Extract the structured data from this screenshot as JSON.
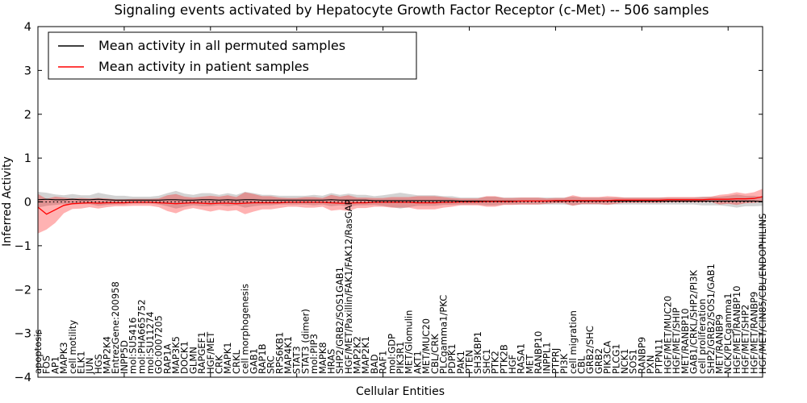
{
  "chart_data": {
    "type": "line",
    "title": "Signaling events activated by Hepatocyte Growth Factor Receptor (c-Met) -- 506 samples",
    "xlabel": "Cellular Entities",
    "ylabel": "Inferred Activity",
    "ylim": [
      -4,
      4
    ],
    "yticks": [
      4,
      3,
      2,
      1,
      0,
      -1,
      -2,
      -3,
      -4
    ],
    "grid": false,
    "legend_position": "upper left",
    "zero_line": {
      "style": "dotted",
      "color": "#000000",
      "y": 0
    },
    "categories": [
      "apoptosis",
      "FOS",
      "AP1",
      "MAPK3",
      "cell motility",
      "ELK1",
      "JUN",
      "HGS",
      "MAP2K4",
      "EntrezGene:200958",
      "INPP5D",
      "mol:SU5416",
      "mol:PHA665752",
      "mol:SU11274",
      "GO:0007205",
      "RAP1A",
      "MAP3K5",
      "DOCK1",
      "GLMN",
      "RAPGEF1",
      "HGF/MET",
      "CRK",
      "MAPK1",
      "CRKL",
      "cell morphogenesis",
      "GAB1",
      "RAP1B",
      "SRC",
      "RPS6KB1",
      "MAP4K1",
      "STAT3",
      "STAT3 (dimer)",
      "mol:PIP3",
      "MAPK8",
      "HRAS",
      "SHP2/GRB2/SOS1GAB1",
      "HGF/MET/Paxillin/FAK1/FAK12/RasGAP",
      "MAP2K2",
      "MAP2K1",
      "BAD",
      "RAF1",
      "mol:GDP",
      "PIK3R1",
      "MET/Glomulin",
      "AKT1",
      "MET/MUC20",
      "CBL/CRK",
      "PLCgamma1/PKC",
      "PDPK1",
      "PAK1",
      "PTEN",
      "SH3KBP1",
      "SHC1",
      "PTK2",
      "PTK2B",
      "HGF",
      "RASA1",
      "MET",
      "RANBP10",
      "INPPL1",
      "PTPRJ",
      "PI3K",
      "cell migration",
      "CBL",
      "GRB2/SHC",
      "GRB2",
      "PIK3CA",
      "PLCG1",
      "NCK1",
      "SOS1",
      "RANBP9",
      "PXN",
      "PTPN11",
      "HGF/MET/MUC20",
      "HGF/MET/SHIP",
      "MET/RANBP10",
      "GAB1/CRKL/SHP2/PI3K",
      "cell proliferation",
      "SHP2/GRB2/SOS1/GAB1",
      "MET/RANBP9",
      "NCK/PLCgamma1",
      "HGF/MET/RANBP10",
      "HGF/MET/SHP2",
      "HGF/MET/RANBP9",
      "HGF/MET/CIN85/CBL/ENDOPHILINS"
    ],
    "series": [
      {
        "name": "Mean activity in all permuted samples",
        "color": "#000000",
        "values": [
          0.05,
          0.06,
          0.05,
          0.05,
          0.06,
          0.05,
          0.05,
          0.06,
          0.05,
          0.04,
          0.04,
          0.04,
          0.04,
          0.04,
          0.04,
          0.05,
          0.05,
          0.04,
          0.04,
          0.05,
          0.05,
          0.04,
          0.05,
          0.04,
          0.05,
          0.05,
          0.04,
          0.04,
          0.04,
          0.04,
          0.04,
          0.04,
          0.04,
          0.04,
          0.05,
          0.04,
          0.04,
          0.04,
          0.04,
          0.03,
          0.03,
          0.03,
          0.03,
          0.03,
          0.03,
          0.03,
          0.03,
          0.03,
          0.03,
          0.02,
          0.02,
          0.02,
          0.02,
          0.02,
          0.02,
          0.02,
          0.02,
          0.02,
          0.02,
          0.02,
          0.02,
          0.02,
          0.02,
          0.02,
          0.02,
          0.02,
          0.02,
          0.02,
          0.02,
          0.02,
          0.02,
          0.02,
          0.02,
          0.02,
          0.02,
          0.02,
          0.02,
          0.02,
          0.02,
          0.02,
          0.02,
          0.02,
          0.02,
          0.02,
          0.01
        ]
      },
      {
        "name": "Mean activity in patient samples",
        "color": "#ff0000",
        "values": [
          -0.12,
          -0.28,
          -0.18,
          -0.08,
          -0.04,
          -0.03,
          -0.02,
          -0.03,
          -0.02,
          -0.02,
          -0.02,
          -0.01,
          -0.01,
          -0.01,
          -0.02,
          -0.03,
          -0.04,
          -0.03,
          -0.02,
          -0.03,
          -0.04,
          -0.03,
          -0.03,
          -0.04,
          -0.03,
          -0.02,
          -0.02,
          -0.02,
          -0.02,
          -0.01,
          -0.01,
          -0.01,
          -0.01,
          -0.01,
          -0.02,
          -0.03,
          -0.03,
          -0.02,
          -0.02,
          -0.01,
          -0.01,
          -0.01,
          -0.01,
          -0.01,
          -0.02,
          -0.02,
          -0.02,
          -0.01,
          -0.01,
          0.0,
          0.0,
          0.0,
          0.01,
          0.01,
          0.01,
          0.01,
          0.02,
          0.02,
          0.02,
          0.02,
          0.03,
          0.03,
          0.03,
          0.03,
          0.03,
          0.03,
          0.03,
          0.04,
          0.04,
          0.04,
          0.04,
          0.04,
          0.04,
          0.05,
          0.05,
          0.05,
          0.05,
          0.05,
          0.06,
          0.06,
          0.06,
          0.07,
          0.07,
          0.08,
          0.12
        ]
      }
    ],
    "bands": [
      {
        "name": "permuted samples range",
        "color": "rgba(128,128,128,0.35)",
        "upper": [
          0.23,
          0.21,
          0.17,
          0.15,
          0.18,
          0.15,
          0.15,
          0.21,
          0.17,
          0.14,
          0.14,
          0.12,
          0.12,
          0.12,
          0.14,
          0.2,
          0.25,
          0.19,
          0.16,
          0.2,
          0.2,
          0.16,
          0.2,
          0.16,
          0.23,
          0.2,
          0.16,
          0.16,
          0.14,
          0.14,
          0.14,
          0.14,
          0.16,
          0.14,
          0.2,
          0.16,
          0.19,
          0.16,
          0.16,
          0.13,
          0.15,
          0.18,
          0.21,
          0.18,
          0.15,
          0.15,
          0.15,
          0.13,
          0.13,
          0.1,
          0.1,
          0.1,
          0.12,
          0.12,
          0.1,
          0.1,
          0.1,
          0.1,
          0.1,
          0.1,
          0.1,
          0.1,
          0.12,
          0.1,
          0.1,
          0.1,
          0.1,
          0.1,
          0.1,
          0.1,
          0.1,
          0.1,
          0.1,
          0.1,
          0.1,
          0.1,
          0.1,
          0.12,
          0.12,
          0.12,
          0.14,
          0.17,
          0.14,
          0.14,
          0.11
        ],
        "lower": [
          -0.13,
          -0.09,
          -0.07,
          -0.05,
          -0.06,
          -0.05,
          -0.05,
          -0.09,
          -0.07,
          -0.06,
          -0.06,
          -0.04,
          -0.04,
          -0.04,
          -0.06,
          -0.1,
          -0.15,
          -0.11,
          -0.08,
          -0.1,
          -0.1,
          -0.08,
          -0.1,
          -0.08,
          -0.13,
          -0.1,
          -0.08,
          -0.08,
          -0.06,
          -0.06,
          -0.06,
          -0.06,
          -0.08,
          -0.06,
          -0.1,
          -0.08,
          -0.11,
          -0.08,
          -0.08,
          -0.07,
          -0.09,
          -0.12,
          -0.15,
          -0.12,
          -0.09,
          -0.09,
          -0.09,
          -0.07,
          -0.07,
          -0.06,
          -0.06,
          -0.06,
          -0.08,
          -0.08,
          -0.06,
          -0.06,
          -0.06,
          -0.06,
          -0.06,
          -0.06,
          -0.06,
          -0.06,
          -0.08,
          -0.06,
          -0.06,
          -0.06,
          -0.06,
          -0.06,
          -0.06,
          -0.06,
          -0.06,
          -0.06,
          -0.06,
          -0.06,
          -0.06,
          -0.06,
          -0.06,
          -0.08,
          -0.08,
          -0.08,
          -0.1,
          -0.13,
          -0.1,
          -0.1,
          -0.09
        ]
      },
      {
        "name": "patient samples range",
        "color": "rgba(255,0,0,0.30)",
        "upper": [
          0.18,
          0.07,
          0.12,
          0.1,
          0.08,
          0.09,
          0.08,
          0.09,
          0.08,
          0.06,
          0.06,
          0.07,
          0.07,
          0.07,
          0.08,
          0.15,
          0.18,
          0.12,
          0.1,
          0.12,
          0.14,
          0.12,
          0.15,
          0.11,
          0.22,
          0.18,
          0.13,
          0.13,
          0.1,
          0.09,
          0.09,
          0.11,
          0.11,
          0.09,
          0.16,
          0.12,
          0.15,
          0.1,
          0.1,
          0.09,
          0.09,
          0.11,
          0.11,
          0.11,
          0.13,
          0.13,
          0.13,
          0.11,
          0.09,
          0.08,
          0.08,
          0.08,
          0.13,
          0.13,
          0.09,
          0.09,
          0.1,
          0.1,
          0.1,
          0.08,
          0.09,
          0.09,
          0.15,
          0.11,
          0.11,
          0.11,
          0.13,
          0.12,
          0.1,
          0.1,
          0.1,
          0.1,
          0.1,
          0.11,
          0.11,
          0.11,
          0.11,
          0.11,
          0.12,
          0.16,
          0.18,
          0.22,
          0.19,
          0.22,
          0.3
        ],
        "lower": [
          -0.72,
          -0.63,
          -0.48,
          -0.26,
          -0.16,
          -0.15,
          -0.12,
          -0.15,
          -0.12,
          -0.1,
          -0.1,
          -0.09,
          -0.09,
          -0.09,
          -0.12,
          -0.21,
          -0.26,
          -0.18,
          -0.14,
          -0.18,
          -0.22,
          -0.18,
          -0.21,
          -0.19,
          -0.28,
          -0.22,
          -0.17,
          -0.17,
          -0.14,
          -0.11,
          -0.11,
          -0.13,
          -0.13,
          -0.11,
          -0.2,
          -0.18,
          -0.21,
          -0.14,
          -0.14,
          -0.11,
          -0.11,
          -0.13,
          -0.13,
          -0.13,
          -0.17,
          -0.17,
          -0.17,
          -0.13,
          -0.11,
          -0.08,
          -0.08,
          -0.08,
          -0.11,
          -0.11,
          -0.07,
          -0.07,
          -0.06,
          -0.06,
          -0.06,
          -0.04,
          -0.03,
          -0.03,
          -0.09,
          -0.05,
          -0.05,
          -0.05,
          -0.07,
          -0.04,
          -0.02,
          -0.02,
          -0.02,
          -0.02,
          -0.02,
          -0.01,
          -0.01,
          -0.01,
          -0.01,
          -0.01,
          0.0,
          -0.06,
          -0.04,
          -0.07,
          -0.03,
          -0.02,
          0.0
        ]
      }
    ]
  }
}
